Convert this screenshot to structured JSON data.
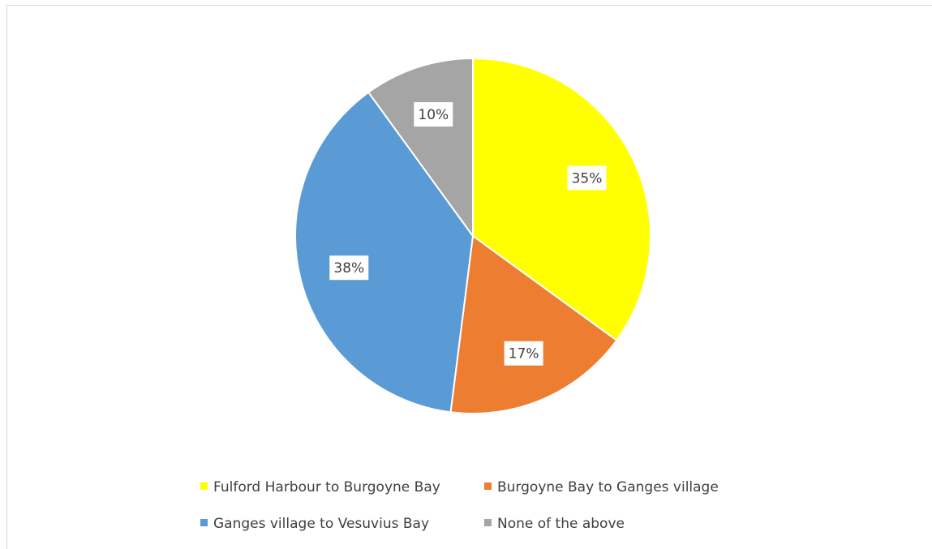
{
  "chart_data": {
    "type": "pie",
    "categories": [
      "Fulford Harbour to Burgoyne Bay",
      "Burgoyne Bay to Ganges village",
      "Ganges village to Vesuvius Bay",
      "None of the above"
    ],
    "values": [
      35,
      17,
      38,
      10
    ],
    "value_labels": [
      "35%",
      "17%",
      "38%",
      "10%"
    ],
    "colors": [
      "#FFFF00",
      "#ED7D31",
      "#5B9BD5",
      "#A5A5A5"
    ],
    "legend": "bottom"
  }
}
